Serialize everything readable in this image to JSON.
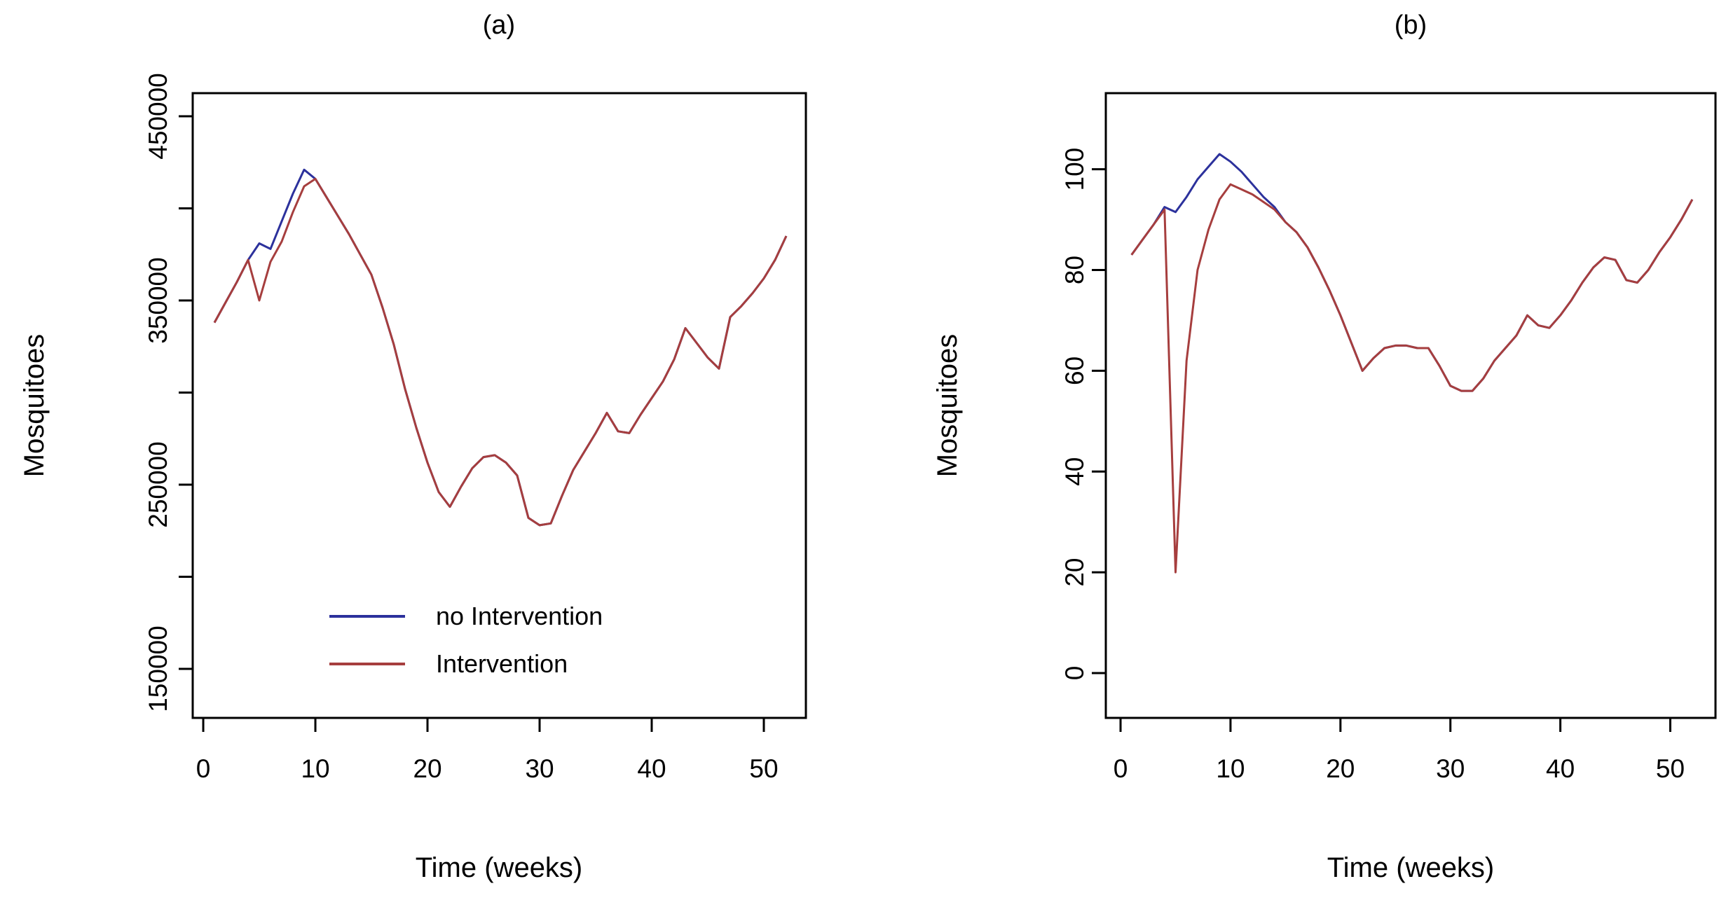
{
  "chart_data": [
    {
      "type": "line",
      "title": "(a)",
      "xlabel": "Time (weeks)",
      "ylabel": "Mosquitoes",
      "x": [
        1,
        2,
        3,
        4,
        5,
        6,
        7,
        8,
        9,
        10,
        11,
        12,
        13,
        14,
        15,
        16,
        17,
        18,
        19,
        20,
        21,
        22,
        23,
        24,
        25,
        26,
        27,
        28,
        29,
        30,
        31,
        32,
        33,
        34,
        35,
        36,
        37,
        38,
        39,
        40,
        41,
        42,
        43,
        44,
        45,
        46,
        47,
        48,
        49,
        50,
        51,
        52
      ],
      "series": [
        {
          "name": "no Intervention",
          "color": "#2C319C",
          "values": [
            338000,
            349000,
            360000,
            372000,
            381000,
            378000,
            393000,
            408000,
            421000,
            416000,
            406000,
            396000,
            386000,
            375000,
            364000,
            346000,
            326000,
            302000,
            281000,
            262000,
            246000,
            238000,
            249000,
            259000,
            265000,
            266000,
            262000,
            255000,
            232000,
            228000,
            229000,
            244000,
            258000,
            268000,
            278000,
            289000,
            279000,
            278000,
            288000,
            297000,
            306000,
            318000,
            335000,
            327000,
            319000,
            313000,
            341000,
            347000,
            354000,
            362000,
            372000,
            385000
          ]
        },
        {
          "name": "Intervention",
          "color": "#A63E3E",
          "values": [
            338000,
            349000,
            360000,
            372000,
            350000,
            371000,
            382000,
            398000,
            412000,
            416000,
            406000,
            396000,
            386000,
            375000,
            364000,
            346000,
            326000,
            302000,
            281000,
            262000,
            246000,
            238000,
            249000,
            259000,
            265000,
            266000,
            262000,
            255000,
            232000,
            228000,
            229000,
            244000,
            258000,
            268000,
            278000,
            289000,
            279000,
            278000,
            288000,
            297000,
            306000,
            318000,
            335000,
            327000,
            319000,
            313000,
            341000,
            347000,
            354000,
            362000,
            372000,
            385000
          ]
        }
      ],
      "xlim": [
        -0.94,
        53.75
      ],
      "ylim": [
        123400,
        462550
      ],
      "x_ticks": {
        "values": [
          0,
          10,
          20,
          30,
          40,
          50
        ],
        "labels": [
          "0",
          "10",
          "20",
          "30",
          "40",
          "50"
        ]
      },
      "y_ticks": {
        "values": [
          150000,
          200000,
          250000,
          300000,
          350000,
          400000,
          450000
        ],
        "labels": [
          "150000",
          "",
          "250000",
          "",
          "350000",
          "",
          "450000"
        ]
      },
      "grid": "off",
      "legend": {
        "position": "inside-lower-left",
        "entries": [
          {
            "label": "no Intervention",
            "color": "#2C319C"
          },
          {
            "label": "Intervention",
            "color": "#A63E3E"
          }
        ]
      }
    },
    {
      "type": "line",
      "title": "(b)",
      "xlabel": "Time (weeks)",
      "ylabel": "Mosquitoes",
      "x": [
        1,
        2,
        3,
        4,
        5,
        6,
        7,
        8,
        9,
        10,
        11,
        12,
        13,
        14,
        15,
        16,
        17,
        18,
        19,
        20,
        21,
        22,
        23,
        24,
        25,
        26,
        27,
        28,
        29,
        30,
        31,
        32,
        33,
        34,
        35,
        36,
        37,
        38,
        39,
        40,
        41,
        42,
        43,
        44,
        45,
        46,
        47,
        48,
        49,
        50,
        51,
        52
      ],
      "series": [
        {
          "name": "no Intervention",
          "color": "#2C319C",
          "values": [
            83,
            86,
            89,
            92.5,
            91.5,
            94.5,
            98,
            100.5,
            103,
            101.5,
            99.5,
            97,
            94.5,
            92.5,
            89.5,
            87.5,
            84.5,
            80.5,
            76,
            71,
            65.5,
            60,
            62.5,
            64.5,
            65,
            65,
            64.5,
            64.5,
            61,
            57,
            56,
            56,
            58.5,
            62,
            64.5,
            67,
            71,
            69,
            68.5,
            71,
            74,
            77.5,
            80.5,
            82.5,
            82,
            78,
            77.5,
            80,
            83.5,
            86.5,
            90,
            94
          ]
        },
        {
          "name": "Intervention",
          "color": "#A63E3E",
          "values": [
            83,
            86,
            89,
            92,
            20,
            62,
            80,
            88,
            94,
            97,
            96,
            95,
            93.5,
            92,
            89.5,
            87.5,
            84.5,
            80.5,
            76,
            71,
            65.5,
            60,
            62.5,
            64.5,
            65,
            65,
            64.5,
            64.5,
            61,
            57,
            56,
            56,
            58.5,
            62,
            64.5,
            67,
            71,
            69,
            68.5,
            71,
            74,
            77.5,
            80.5,
            82.5,
            82,
            78,
            77.5,
            80,
            83.5,
            86.5,
            90,
            94
          ]
        }
      ],
      "xlim": [
        -1.34,
        54.11
      ],
      "ylim": [
        -8.9,
        115.1
      ],
      "x_ticks": {
        "values": [
          0,
          10,
          20,
          30,
          40,
          50
        ],
        "labels": [
          "0",
          "10",
          "20",
          "30",
          "40",
          "50"
        ]
      },
      "y_ticks": {
        "values": [
          0,
          20,
          40,
          60,
          80,
          100
        ],
        "labels": [
          "0",
          "20",
          "40",
          "60",
          "80",
          "100"
        ]
      },
      "grid": "off",
      "legend": null
    }
  ]
}
